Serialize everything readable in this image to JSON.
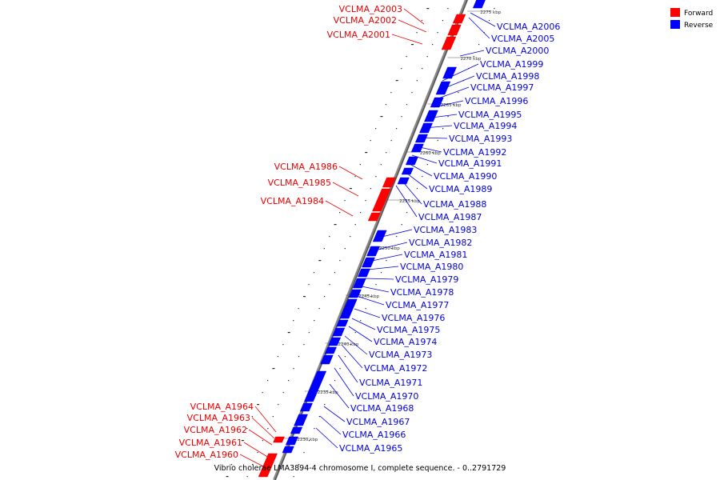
{
  "title": "Vibrio cholerae LMA3894-4 chromosome I, complete sequence. - 0..2791729",
  "colors": {
    "forward": "#ff0000",
    "reverse": "#0000ff",
    "forward_label": "#ee0000",
    "reverse_label": "#0000dd",
    "backbone": "#888888"
  },
  "legend": [
    {
      "label": "Forward",
      "strand": "forward"
    },
    {
      "label": "Reverse",
      "strand": "reverse"
    }
  ],
  "ticks": [
    "2230 kbp",
    "2235 kbp",
    "2240 kbp",
    "2245 kbp",
    "2250 kbp",
    "2255 kbp",
    "2260 kbp",
    "2265 kbp",
    "2270 kbp",
    "2275 kbp"
  ],
  "forward_genes": [
    "VCLMA_A2003",
    "VCLMA_A2002",
    "VCLMA_A2001",
    "VCLMA_A1986",
    "VCLMA_A1985",
    "VCLMA_A1984",
    "VCLMA_A1964",
    "VCLMA_A1963",
    "VCLMA_A1962",
    "VCLMA_A1961",
    "VCLMA_A1960"
  ],
  "reverse_genes": [
    "VCLMA_A2006",
    "VCLMA_A2005",
    "VCLMA_A2000",
    "VCLMA_A1999",
    "VCLMA_A1998",
    "VCLMA_A1997",
    "VCLMA_A1996",
    "VCLMA_A1995",
    "VCLMA_A1994",
    "VCLMA_A1993",
    "VCLMA_A1992",
    "VCLMA_A1991",
    "VCLMA_A1990",
    "VCLMA_A1989",
    "VCLMA_A1988",
    "VCLMA_A1987",
    "VCLMA_A1983",
    "VCLMA_A1982",
    "VCLMA_A1981",
    "VCLMA_A1980",
    "VCLMA_A1979",
    "VCLMA_A1978",
    "VCLMA_A1977",
    "VCLMA_A1976",
    "VCLMA_A1975",
    "VCLMA_A1974",
    "VCLMA_A1973",
    "VCLMA_A1972",
    "VCLMA_A1971",
    "VCLMA_A1970",
    "VCLMA_A1968",
    "VCLMA_A1967",
    "VCLMA_A1966",
    "VCLMA_A1965"
  ]
}
